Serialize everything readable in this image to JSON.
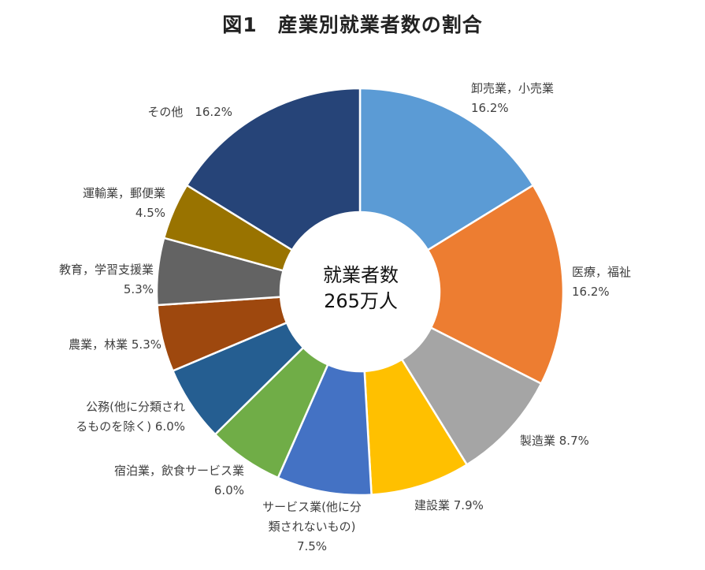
{
  "title": "図1　産業別就業者数の割合",
  "center_label": {
    "line1": "就業者数",
    "line2": "265万人"
  },
  "chart_data": {
    "type": "pie",
    "title": "図1　産業別就業者数の割合",
    "slices": [
      {
        "label": "卸売業，小売業",
        "value": 16.2,
        "value_label": "16.2%",
        "color": "#5B9BD5"
      },
      {
        "label": "医療，福祉",
        "value": 16.2,
        "value_label": "16.2%",
        "color": "#ED7D31"
      },
      {
        "label": "製造業",
        "value": 8.7,
        "value_label": "8.7%",
        "color": "#A5A5A5"
      },
      {
        "label": "建設業",
        "value": 7.9,
        "value_label": "7.9%",
        "color": "#FFC000"
      },
      {
        "label": "サービス業(他に分類されないもの)",
        "value": 7.5,
        "value_label": "7.5%",
        "color": "#4472C4"
      },
      {
        "label": "宿泊業，飲食サービス業",
        "value": 6.0,
        "value_label": "6.0%",
        "color": "#70AD47"
      },
      {
        "label": "公務(他に分類されるものを除く)",
        "value": 6.0,
        "value_label": "6.0%",
        "color": "#255E91"
      },
      {
        "label": "農業，林業",
        "value": 5.3,
        "value_label": "5.3%",
        "color": "#9E480E"
      },
      {
        "label": "教育，学習支援業",
        "value": 5.3,
        "value_label": "5.3%",
        "color": "#636363"
      },
      {
        "label": "運輸業，郵便業",
        "value": 4.5,
        "value_label": "4.5%",
        "color": "#997300"
      },
      {
        "label": "その他",
        "value": 16.2,
        "value_label": "16.2%",
        "color": "#264478"
      }
    ]
  },
  "labels": [
    {
      "line1": "卸売業，小売業",
      "line2": "16.2%"
    },
    {
      "line1": "医療，福祉",
      "line2": "16.2%"
    },
    {
      "line1": "製造業 8.7%"
    },
    {
      "line1": "建設業 7.9%"
    },
    {
      "line1": "サービス業(他に分",
      "line2": "類されないもの)",
      "line3": "7.5%"
    },
    {
      "line1": "宿泊業，飲食サービス業",
      "line2": "6.0%"
    },
    {
      "line1": "公務(他に分類され",
      "line2": "るものを除く) 6.0%"
    },
    {
      "line1": "農業，林業 5.3%"
    },
    {
      "line1": "教育，学習支援業",
      "line2": "5.3%"
    },
    {
      "line1": "運輸業，郵便業",
      "line2": "4.5%"
    },
    {
      "line1": "その他　16.2%"
    }
  ]
}
